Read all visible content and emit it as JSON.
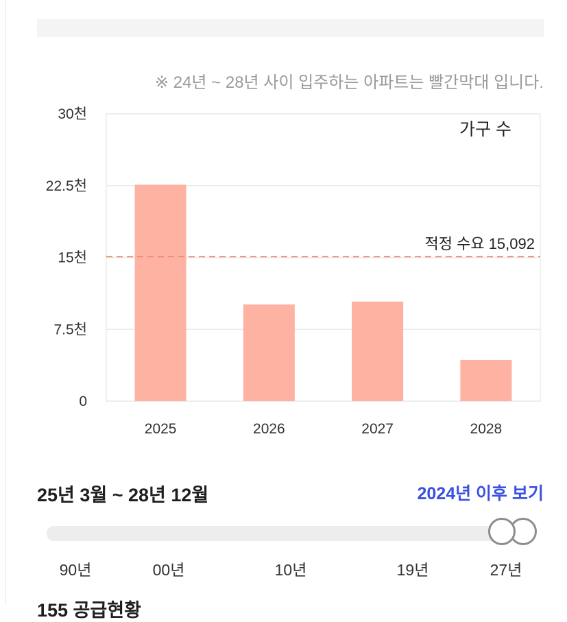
{
  "note": "※ 24년 ~ 28년 사이 입주하는 아파트는 빨간막대 입니다.",
  "chart_data": {
    "type": "bar",
    "categories": [
      "2025",
      "2026",
      "2027",
      "2028"
    ],
    "series": [
      {
        "name": "가구 수",
        "values": [
          22600,
          10100,
          10400,
          4300
        ],
        "color": "#fdb2a2"
      }
    ],
    "ylim": [
      0,
      30000
    ],
    "y_ticks": [
      {
        "value": 0,
        "label": "0"
      },
      {
        "value": 7500,
        "label": "7.5천"
      },
      {
        "value": 15000,
        "label": "15천"
      },
      {
        "value": 22500,
        "label": "22.5천"
      },
      {
        "value": 30000,
        "label": "30천"
      }
    ],
    "legend": {
      "label": "가구 수",
      "placement": "top-right"
    },
    "reference_line": {
      "value": 15092,
      "label": "적정 수요 15,092",
      "color": "#f08a7a",
      "style": "dashed"
    },
    "grid": true
  },
  "range": {
    "title": "25년 3월 ~ 28년 12월",
    "after_link": "2024년 이후 보기"
  },
  "slider": {
    "labels": [
      "90년",
      "00년",
      "10년",
      "19년",
      "27년"
    ],
    "start_year": 2025,
    "end_year": 2028
  },
  "next_section_title": "155 공급현황"
}
